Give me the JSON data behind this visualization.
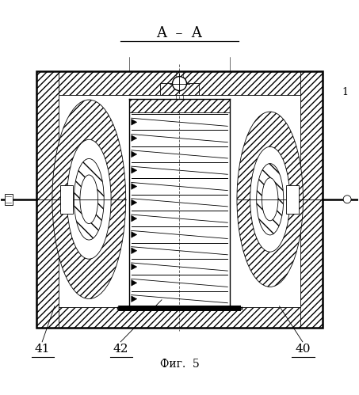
{
  "title": "A  –  A",
  "caption": "Фиг.  5",
  "label_40": "40",
  "label_41": "41",
  "label_42": "42",
  "label_1": "1",
  "bg_color": "#ffffff",
  "figsize": [
    4.53,
    4.99
  ],
  "dpi": 100,
  "ox": 0.1,
  "oy": 0.135,
  "ow": 0.8,
  "oh": 0.72,
  "wall": 0.068
}
